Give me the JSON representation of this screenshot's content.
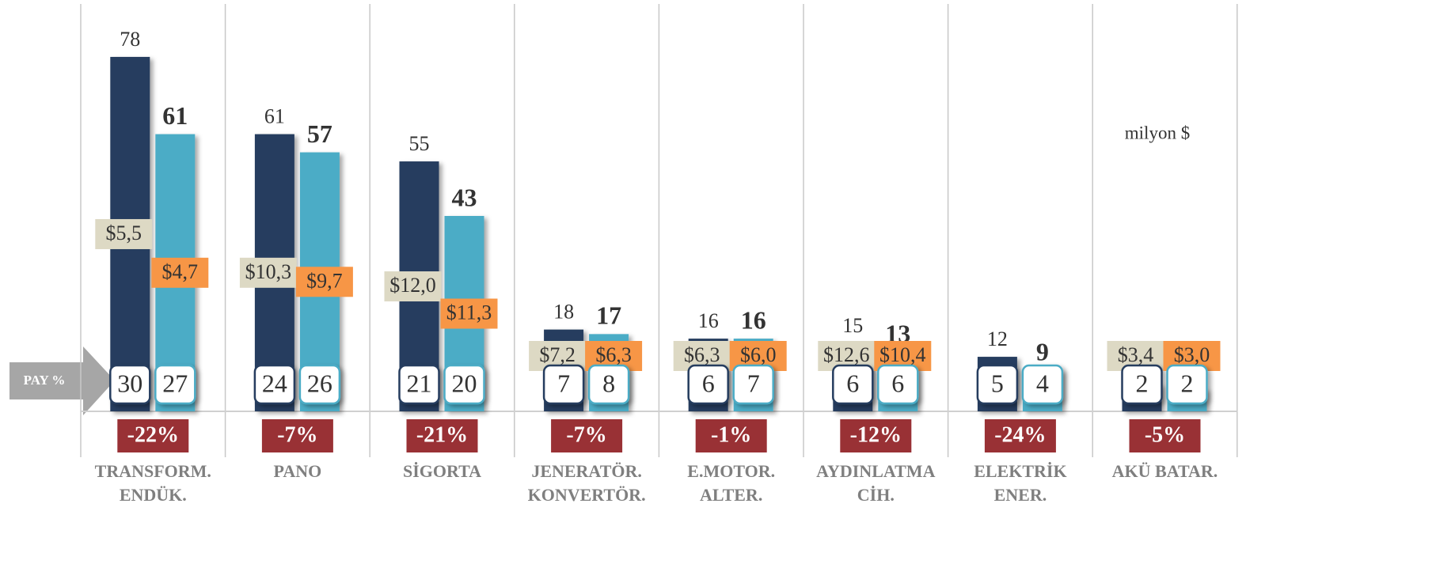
{
  "chart_data": {
    "type": "bar",
    "annotation": "milyon $",
    "share_label": "PAY %",
    "categories": [
      "TRANSFORM.\nENDÜK.",
      "PANO",
      "SİGORTA",
      "JENERATÖR.\nKONVERTÖR.",
      "E.MOTOR.\nALTER.",
      "AYDINLATMA\nCİH.",
      "ELEKTRİK\nENER.",
      "AKÜ BATAR."
    ],
    "ylim": [
      0,
      90
    ],
    "series": [
      {
        "color": "#253d5e",
        "values": [
          78,
          61,
          55,
          18,
          16,
          15,
          12,
          6
        ],
        "shares": [
          30,
          24,
          21,
          7,
          6,
          6,
          5,
          2
        ],
        "unit_prices": {
          "values": [
            5.5,
            10.3,
            12.0,
            7.2,
            6.3,
            12.6,
            null,
            3.4
          ],
          "value_labels": [
            "$5,5",
            "$10,3",
            "$12,0",
            "$7,2",
            "$6,3",
            "$12,6",
            null,
            "$3,4"
          ],
          "color": "#ddd9c4"
        }
      },
      {
        "color": "#4bacc6",
        "values": [
          61,
          57,
          43,
          17,
          16,
          13,
          9,
          5
        ],
        "shares": [
          27,
          26,
          20,
          8,
          7,
          6,
          4,
          2
        ],
        "unit_prices": {
          "values": [
            4.7,
            9.7,
            11.3,
            6.3,
            6.0,
            10.4,
            null,
            3.0
          ],
          "value_labels": [
            "$4,7",
            "$9,7",
            "$11,3",
            "$6,3",
            "$6,0",
            "$10,4",
            null,
            "$3,0"
          ],
          "color": "#f79646"
        }
      }
    ],
    "change": {
      "values": [
        -22,
        -7,
        -21,
        -7,
        -1,
        -12,
        -24,
        -5
      ],
      "value_labels": [
        "-22%",
        "-7%",
        "-21%",
        "-7%",
        "-1%",
        "-12%",
        "-24%",
        "-5%"
      ],
      "color": "#993135"
    }
  }
}
